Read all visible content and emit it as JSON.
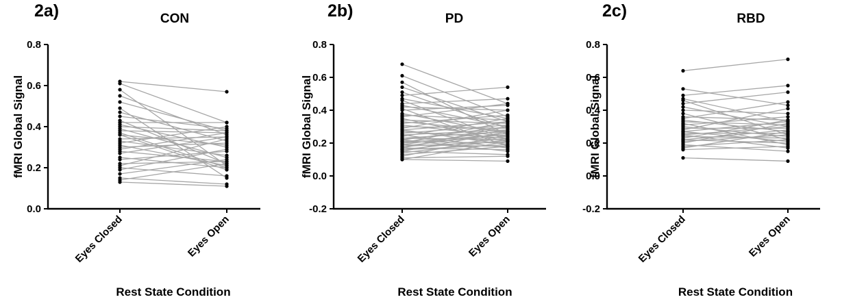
{
  "chart_data": [
    {
      "panel_label": "2a)",
      "type": "line",
      "title": "CON",
      "ylabel": "fMRI Global Signal",
      "xlabel": "Rest State Condition",
      "categories": [
        "Eyes Closed",
        "Eyes Open"
      ],
      "ylim": [
        0.0,
        0.8
      ],
      "yticks": [
        "0.0",
        "0.2",
        "0.4",
        "0.6",
        "0.8"
      ],
      "grid": false,
      "pairs": [
        [
          0.62,
          0.57
        ],
        [
          0.61,
          0.42
        ],
        [
          0.58,
          0.21
        ],
        [
          0.55,
          0.36
        ],
        [
          0.52,
          0.38
        ],
        [
          0.49,
          0.15
        ],
        [
          0.47,
          0.33
        ],
        [
          0.45,
          0.39
        ],
        [
          0.43,
          0.22
        ],
        [
          0.42,
          0.42
        ],
        [
          0.41,
          0.3
        ],
        [
          0.4,
          0.38
        ],
        [
          0.39,
          0.25
        ],
        [
          0.38,
          0.37
        ],
        [
          0.37,
          0.2
        ],
        [
          0.36,
          0.31
        ],
        [
          0.36,
          0.19
        ],
        [
          0.34,
          0.35
        ],
        [
          0.33,
          0.26
        ],
        [
          0.32,
          0.4
        ],
        [
          0.31,
          0.21
        ],
        [
          0.3,
          0.32
        ],
        [
          0.29,
          0.37
        ],
        [
          0.28,
          0.23
        ],
        [
          0.27,
          0.35
        ],
        [
          0.25,
          0.2
        ],
        [
          0.24,
          0.28
        ],
        [
          0.22,
          0.23
        ],
        [
          0.21,
          0.34
        ],
        [
          0.2,
          0.16
        ],
        [
          0.19,
          0.29
        ],
        [
          0.17,
          0.24
        ],
        [
          0.15,
          0.12
        ],
        [
          0.14,
          0.22
        ],
        [
          0.13,
          0.11
        ]
      ]
    },
    {
      "panel_label": "2b)",
      "type": "line",
      "title": "PD",
      "ylabel": "fMRI Global Signal",
      "xlabel": "Rest State Condition",
      "categories": [
        "Eyes Closed",
        "Eyes Open"
      ],
      "ylim": [
        -0.2,
        0.8
      ],
      "yticks": [
        "-0.2",
        "0.0",
        "0.2",
        "0.4",
        "0.6",
        "0.8"
      ],
      "grid": false,
      "pairs": [
        [
          0.68,
          0.44
        ],
        [
          0.61,
          0.36
        ],
        [
          0.57,
          0.25
        ],
        [
          0.54,
          0.33
        ],
        [
          0.51,
          0.29
        ],
        [
          0.49,
          0.54
        ],
        [
          0.47,
          0.35
        ],
        [
          0.46,
          0.22
        ],
        [
          0.44,
          0.47
        ],
        [
          0.43,
          0.3
        ],
        [
          0.42,
          0.4
        ],
        [
          0.41,
          0.18
        ],
        [
          0.4,
          0.43
        ],
        [
          0.38,
          0.26
        ],
        [
          0.37,
          0.34
        ],
        [
          0.36,
          0.44
        ],
        [
          0.35,
          0.21
        ],
        [
          0.34,
          0.32
        ],
        [
          0.33,
          0.27
        ],
        [
          0.32,
          0.37
        ],
        [
          0.31,
          0.24
        ],
        [
          0.3,
          0.29
        ],
        [
          0.29,
          0.4
        ],
        [
          0.28,
          0.19
        ],
        [
          0.28,
          0.33
        ],
        [
          0.27,
          0.23
        ],
        [
          0.26,
          0.31
        ],
        [
          0.25,
          0.28
        ],
        [
          0.25,
          0.17
        ],
        [
          0.24,
          0.35
        ],
        [
          0.23,
          0.22
        ],
        [
          0.23,
          0.27
        ],
        [
          0.22,
          0.3
        ],
        [
          0.22,
          0.15
        ],
        [
          0.21,
          0.25
        ],
        [
          0.21,
          0.2
        ],
        [
          0.2,
          0.33
        ],
        [
          0.2,
          0.24
        ],
        [
          0.19,
          0.18
        ],
        [
          0.19,
          0.28
        ],
        [
          0.18,
          0.21
        ],
        [
          0.18,
          0.26
        ],
        [
          0.17,
          0.3
        ],
        [
          0.17,
          0.16
        ],
        [
          0.16,
          0.23
        ],
        [
          0.16,
          0.19
        ],
        [
          0.15,
          0.27
        ],
        [
          0.15,
          0.13
        ],
        [
          0.14,
          0.22
        ],
        [
          0.13,
          0.18
        ],
        [
          0.12,
          0.25
        ],
        [
          0.11,
          0.12
        ],
        [
          0.1,
          0.21
        ],
        [
          0.1,
          0.09
        ]
      ]
    },
    {
      "panel_label": "2c)",
      "type": "line",
      "title": "RBD",
      "ylabel": "fMRI Global Signal",
      "xlabel": "Rest State Condition",
      "categories": [
        "Eyes Closed",
        "Eyes Open"
      ],
      "ylim": [
        -0.2,
        0.8
      ],
      "yticks": [
        "-0.2",
        "0.0",
        "0.2",
        "0.4",
        "0.6",
        "0.8"
      ],
      "grid": false,
      "pairs": [
        [
          0.64,
          0.71
        ],
        [
          0.53,
          0.43
        ],
        [
          0.49,
          0.55
        ],
        [
          0.47,
          0.33
        ],
        [
          0.46,
          0.25
        ],
        [
          0.44,
          0.51
        ],
        [
          0.42,
          0.3
        ],
        [
          0.4,
          0.38
        ],
        [
          0.38,
          0.22
        ],
        [
          0.36,
          0.34
        ],
        [
          0.35,
          0.45
        ],
        [
          0.34,
          0.27
        ],
        [
          0.33,
          0.31
        ],
        [
          0.32,
          0.19
        ],
        [
          0.31,
          0.36
        ],
        [
          0.3,
          0.24
        ],
        [
          0.29,
          0.29
        ],
        [
          0.28,
          0.41
        ],
        [
          0.27,
          0.21
        ],
        [
          0.27,
          0.33
        ],
        [
          0.26,
          0.26
        ],
        [
          0.25,
          0.17
        ],
        [
          0.25,
          0.3
        ],
        [
          0.24,
          0.23
        ],
        [
          0.23,
          0.34
        ],
        [
          0.22,
          0.28
        ],
        [
          0.22,
          0.2
        ],
        [
          0.21,
          0.25
        ],
        [
          0.2,
          0.32
        ],
        [
          0.19,
          0.15
        ],
        [
          0.18,
          0.22
        ],
        [
          0.17,
          0.27
        ],
        [
          0.16,
          0.18
        ],
        [
          0.11,
          0.09
        ]
      ]
    }
  ],
  "colors": {
    "line": "#a6a6a6",
    "point": "#000000",
    "axis": "#000000"
  }
}
